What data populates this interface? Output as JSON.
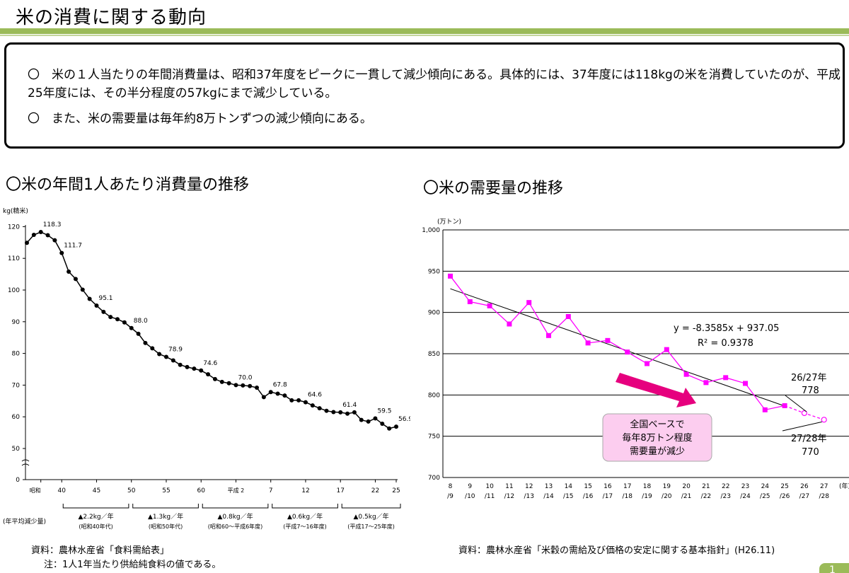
{
  "page_title": "米の消費に関する動向",
  "summary": {
    "line1": "〇　米の１人当たりの年間消費量は、昭和37年度をピークに一貫して減少傾向にある。具体的には、37年度には118kgの米を消費していたのが、平成25年度には、その半分程度の57kgにまで減少している。",
    "line2": "〇　また、米の需要量は毎年約8万トンずつの減少傾向にある。"
  },
  "left_section_title": "〇米の年間1人あたり消費量の推移",
  "right_section_title": "〇米の需要量の推移",
  "left_source": "資料：農林水産省「食料需給表」",
  "left_note": "注：1人1年当たり供給純食料の値である。",
  "right_source": "資料：農林水産省「米穀の需給及び価格の安定に関する基本指針」(H26.11)",
  "page_number": "1",
  "colors": {
    "title_rule": "#9bbb59",
    "pink_series": "#ff00ff",
    "arrow": "#e6007e",
    "callout_fill": "#fccdef"
  },
  "chart_data": [
    {
      "type": "line",
      "ylabel": "kg(精米)",
      "ylim": [
        0,
        120
      ],
      "y_ticks": [
        "0",
        "50",
        "60",
        "70",
        "80",
        "90",
        "100",
        "110",
        "120"
      ],
      "x_tick_labels": [
        "昭和",
        "40",
        "45",
        "50",
        "55",
        "60",
        "平成 2",
        "7",
        "12",
        "17",
        "22",
        "25"
      ],
      "x": [
        1960,
        1961,
        1962,
        1963,
        1964,
        1965,
        1966,
        1967,
        1968,
        1969,
        1970,
        1971,
        1972,
        1973,
        1974,
        1975,
        1976,
        1977,
        1978,
        1979,
        1980,
        1981,
        1982,
        1983,
        1984,
        1985,
        1986,
        1987,
        1988,
        1989,
        1990,
        1991,
        1992,
        1993,
        1994,
        1995,
        1996,
        1997,
        1998,
        1999,
        2000,
        2001,
        2002,
        2003,
        2004,
        2005,
        2006,
        2007,
        2008,
        2009,
        2010,
        2011,
        2012,
        2013
      ],
      "values": [
        114.9,
        117.4,
        118.3,
        117.3,
        115.7,
        111.7,
        105.8,
        103.5,
        100.1,
        97.2,
        95.1,
        93.1,
        91.5,
        90.8,
        89.8,
        88.0,
        86.2,
        83.3,
        81.6,
        79.8,
        78.9,
        77.8,
        76.4,
        75.7,
        75.2,
        74.6,
        73.4,
        71.9,
        71.0,
        70.6,
        70.0,
        69.9,
        69.7,
        69.2,
        66.2,
        67.8,
        67.3,
        66.7,
        65.2,
        65.2,
        64.6,
        63.6,
        62.7,
        61.9,
        61.5,
        61.4,
        61.0,
        61.4,
        59.0,
        58.5,
        59.5,
        57.8,
        56.3,
        56.9
      ],
      "data_labels": [
        {
          "x": 1962,
          "text": "118.3"
        },
        {
          "x": 1965,
          "text": "111.7"
        },
        {
          "x": 1970,
          "text": "95.1"
        },
        {
          "x": 1975,
          "text": "88.0"
        },
        {
          "x": 1980,
          "text": "78.9"
        },
        {
          "x": 1985,
          "text": "74.6"
        },
        {
          "x": 1990,
          "text": "70.0"
        },
        {
          "x": 1995,
          "text": "67.8"
        },
        {
          "x": 2000,
          "text": "64.6"
        },
        {
          "x": 2005,
          "text": "61.4"
        },
        {
          "x": 2010,
          "text": "59.5"
        },
        {
          "x": 2013,
          "text": "56.9"
        }
      ],
      "annotation_row_label": "(年平均減少量)",
      "period_annotations": [
        {
          "amount": "▲2.2kg／年",
          "period": "(昭和40年代)"
        },
        {
          "amount": "▲1.3kg／年",
          "period": "(昭和50年代)"
        },
        {
          "amount": "▲0.8kg／年",
          "period": "(昭和60～平成6年度)"
        },
        {
          "amount": "▲0.6kg／年",
          "period": "(平成7～16年度)"
        },
        {
          "amount": "▲0.5kg／年",
          "period": "(平成17～25年度)"
        }
      ]
    },
    {
      "type": "line",
      "ylabel": "(万トン)",
      "ylim": [
        700,
        1000
      ],
      "y_ticks": [
        "700",
        "750",
        "800",
        "850",
        "900",
        "950",
        "1,000"
      ],
      "x_unit": "(年)",
      "categories": [
        [
          "8",
          "/9"
        ],
        [
          "9",
          "/10"
        ],
        [
          "10",
          "/11"
        ],
        [
          "11",
          "/12"
        ],
        [
          "12",
          "/13"
        ],
        [
          "13",
          "/14"
        ],
        [
          "14",
          "/15"
        ],
        [
          "15",
          "/16"
        ],
        [
          "16",
          "/17"
        ],
        [
          "17",
          "/18"
        ],
        [
          "18",
          "/19"
        ],
        [
          "19",
          "/20"
        ],
        [
          "20",
          "/21"
        ],
        [
          "21",
          "/22"
        ],
        [
          "22",
          "/23"
        ],
        [
          "23",
          "/24"
        ],
        [
          "24",
          "/25"
        ],
        [
          "25",
          "/26"
        ],
        [
          "26",
          "/27"
        ],
        [
          "27",
          "/28"
        ]
      ],
      "actual_values": [
        944,
        913,
        908,
        886,
        912,
        872,
        895,
        863,
        866,
        852,
        838,
        855,
        825,
        815,
        821,
        814,
        782,
        787
      ],
      "forecast_values": [
        787,
        778,
        770
      ],
      "trend": {
        "equation": "y = -8.3585x + 937.05",
        "r2": "R² = 0.9378",
        "slope": -8.3585,
        "intercept": 937.05
      },
      "callouts": [
        {
          "label": "26/27年",
          "value": "778"
        },
        {
          "label": "27/28年",
          "value": "770"
        }
      ],
      "arrow_box": {
        "line1": "全国ベースで",
        "line2": "毎年8万トン程度",
        "line3": "需要量が減少"
      }
    }
  ]
}
